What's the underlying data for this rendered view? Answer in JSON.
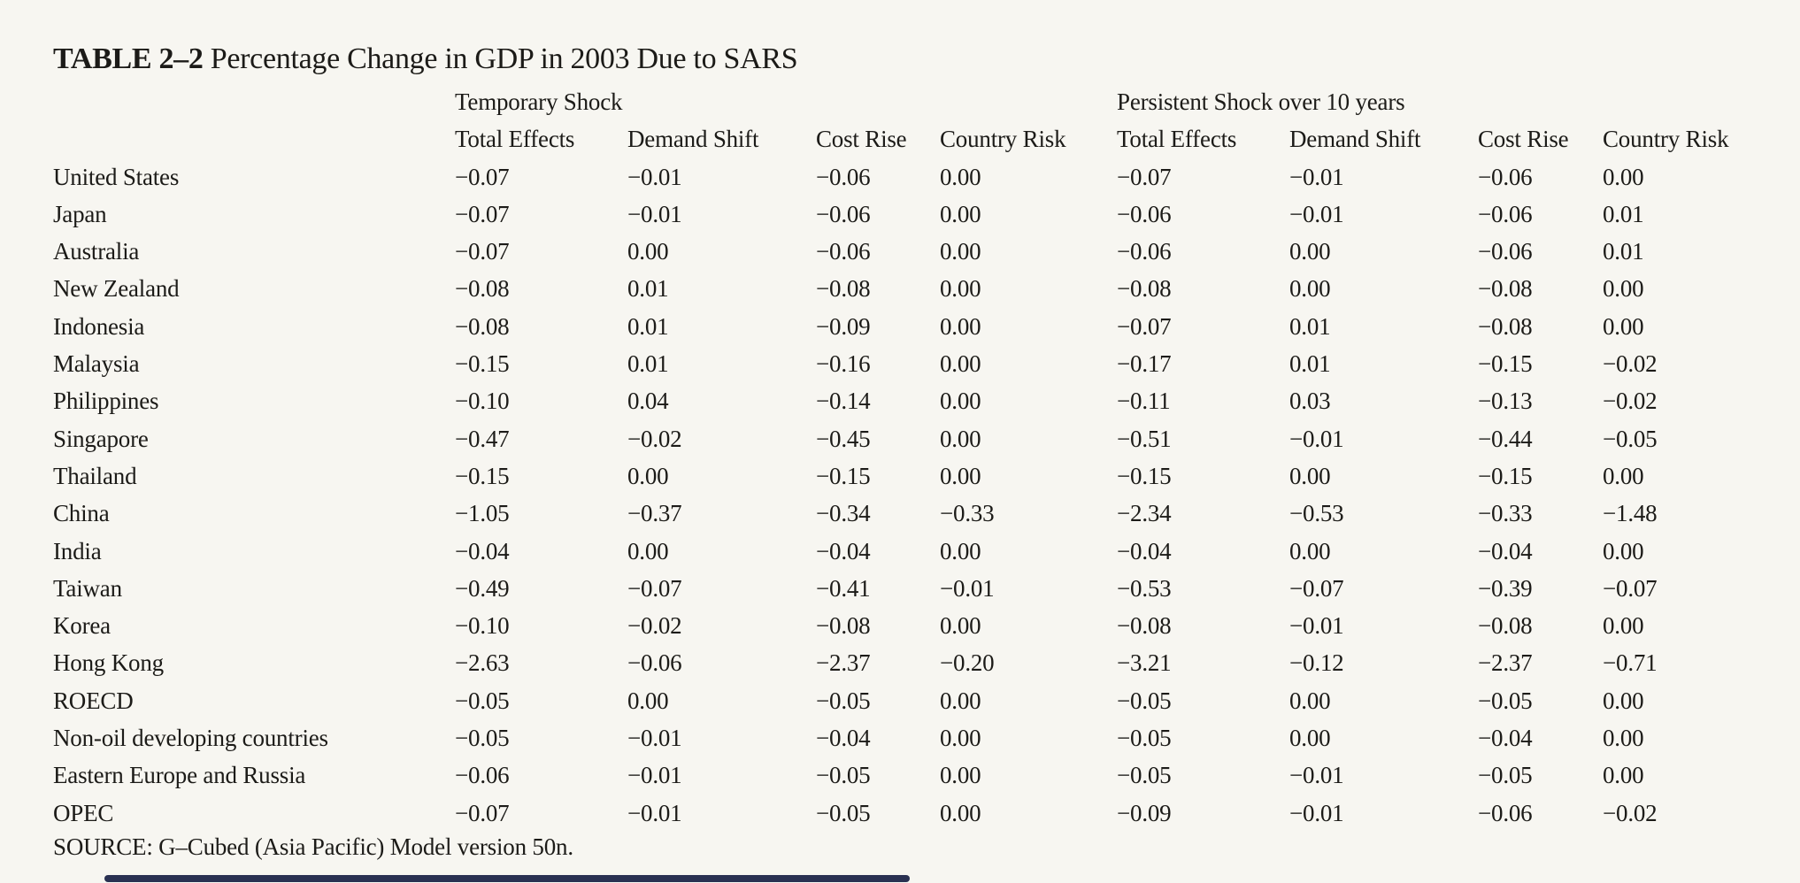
{
  "colors": {
    "background": "#f7f6f1",
    "text": "#1c1b18",
    "scrollbar_thumb": "#2a3152"
  },
  "title": {
    "label": "TABLE 2–2",
    "text": " Percentage Change in GDP in 2003 Due to SARS"
  },
  "table": {
    "group_headers": [
      {
        "label": "Temporary Shock"
      },
      {
        "label": "Persistent Shock over 10 years"
      }
    ],
    "column_headers": [
      "Total Effects",
      "Demand Shift",
      "Cost Rise",
      "Country Risk",
      "Total Effects",
      "Demand Shift",
      "Cost Rise",
      "Country Risk"
    ],
    "rows": [
      {
        "country": "United States",
        "values": [
          "−0.07",
          "−0.01",
          "−0.06",
          "0.00",
          "−0.07",
          "−0.01",
          "−0.06",
          "0.00"
        ]
      },
      {
        "country": "Japan",
        "values": [
          "−0.07",
          "−0.01",
          "−0.06",
          "0.00",
          "−0.06",
          "−0.01",
          "−0.06",
          "0.01"
        ]
      },
      {
        "country": "Australia",
        "values": [
          "−0.07",
          "0.00",
          "−0.06",
          "0.00",
          "−0.06",
          "0.00",
          "−0.06",
          "0.01"
        ]
      },
      {
        "country": "New Zealand",
        "values": [
          "−0.08",
          "0.01",
          "−0.08",
          "0.00",
          "−0.08",
          "0.00",
          "−0.08",
          "0.00"
        ]
      },
      {
        "country": "Indonesia",
        "values": [
          "−0.08",
          "0.01",
          "−0.09",
          "0.00",
          "−0.07",
          "0.01",
          "−0.08",
          "0.00"
        ]
      },
      {
        "country": "Malaysia",
        "values": [
          "−0.15",
          "0.01",
          "−0.16",
          "0.00",
          "−0.17",
          "0.01",
          "−0.15",
          "−0.02"
        ]
      },
      {
        "country": "Philippines",
        "values": [
          "−0.10",
          "0.04",
          "−0.14",
          "0.00",
          "−0.11",
          "0.03",
          "−0.13",
          "−0.02"
        ]
      },
      {
        "country": "Singapore",
        "values": [
          "−0.47",
          "−0.02",
          "−0.45",
          "0.00",
          "−0.51",
          "−0.01",
          "−0.44",
          "−0.05"
        ]
      },
      {
        "country": "Thailand",
        "values": [
          "−0.15",
          "0.00",
          "−0.15",
          "0.00",
          "−0.15",
          "0.00",
          "−0.15",
          "0.00"
        ]
      },
      {
        "country": "China",
        "values": [
          "−1.05",
          "−0.37",
          "−0.34",
          "−0.33",
          "−2.34",
          "−0.53",
          "−0.33",
          "−1.48"
        ]
      },
      {
        "country": "India",
        "values": [
          "−0.04",
          "0.00",
          "−0.04",
          "0.00",
          "−0.04",
          "0.00",
          "−0.04",
          "0.00"
        ]
      },
      {
        "country": "Taiwan",
        "values": [
          "−0.49",
          "−0.07",
          "−0.41",
          "−0.01",
          "−0.53",
          "−0.07",
          "−0.39",
          "−0.07"
        ]
      },
      {
        "country": "Korea",
        "values": [
          "−0.10",
          "−0.02",
          "−0.08",
          "0.00",
          "−0.08",
          "−0.01",
          "−0.08",
          "0.00"
        ]
      },
      {
        "country": "Hong Kong",
        "values": [
          "−2.63",
          "−0.06",
          "−2.37",
          "−0.20",
          "−3.21",
          "−0.12",
          "−2.37",
          "−0.71"
        ]
      },
      {
        "country": "ROECD",
        "values": [
          "−0.05",
          "0.00",
          "−0.05",
          "0.00",
          "−0.05",
          "0.00",
          "−0.05",
          "0.00"
        ]
      },
      {
        "country": "Non-oil developing countries",
        "values": [
          "−0.05",
          "−0.01",
          "−0.04",
          "0.00",
          "−0.05",
          "0.00",
          "−0.04",
          "0.00"
        ]
      },
      {
        "country": "Eastern Europe and Russia",
        "values": [
          "−0.06",
          "−0.01",
          "−0.05",
          "0.00",
          "−0.05",
          "−0.01",
          "−0.05",
          "0.00"
        ]
      },
      {
        "country": "OPEC",
        "values": [
          "−0.07",
          "−0.01",
          "−0.05",
          "0.00",
          "−0.09",
          "−0.01",
          "−0.06",
          "−0.02"
        ]
      }
    ]
  },
  "source": "SOURCE: G–Cubed (Asia Pacific) Model version 50n."
}
